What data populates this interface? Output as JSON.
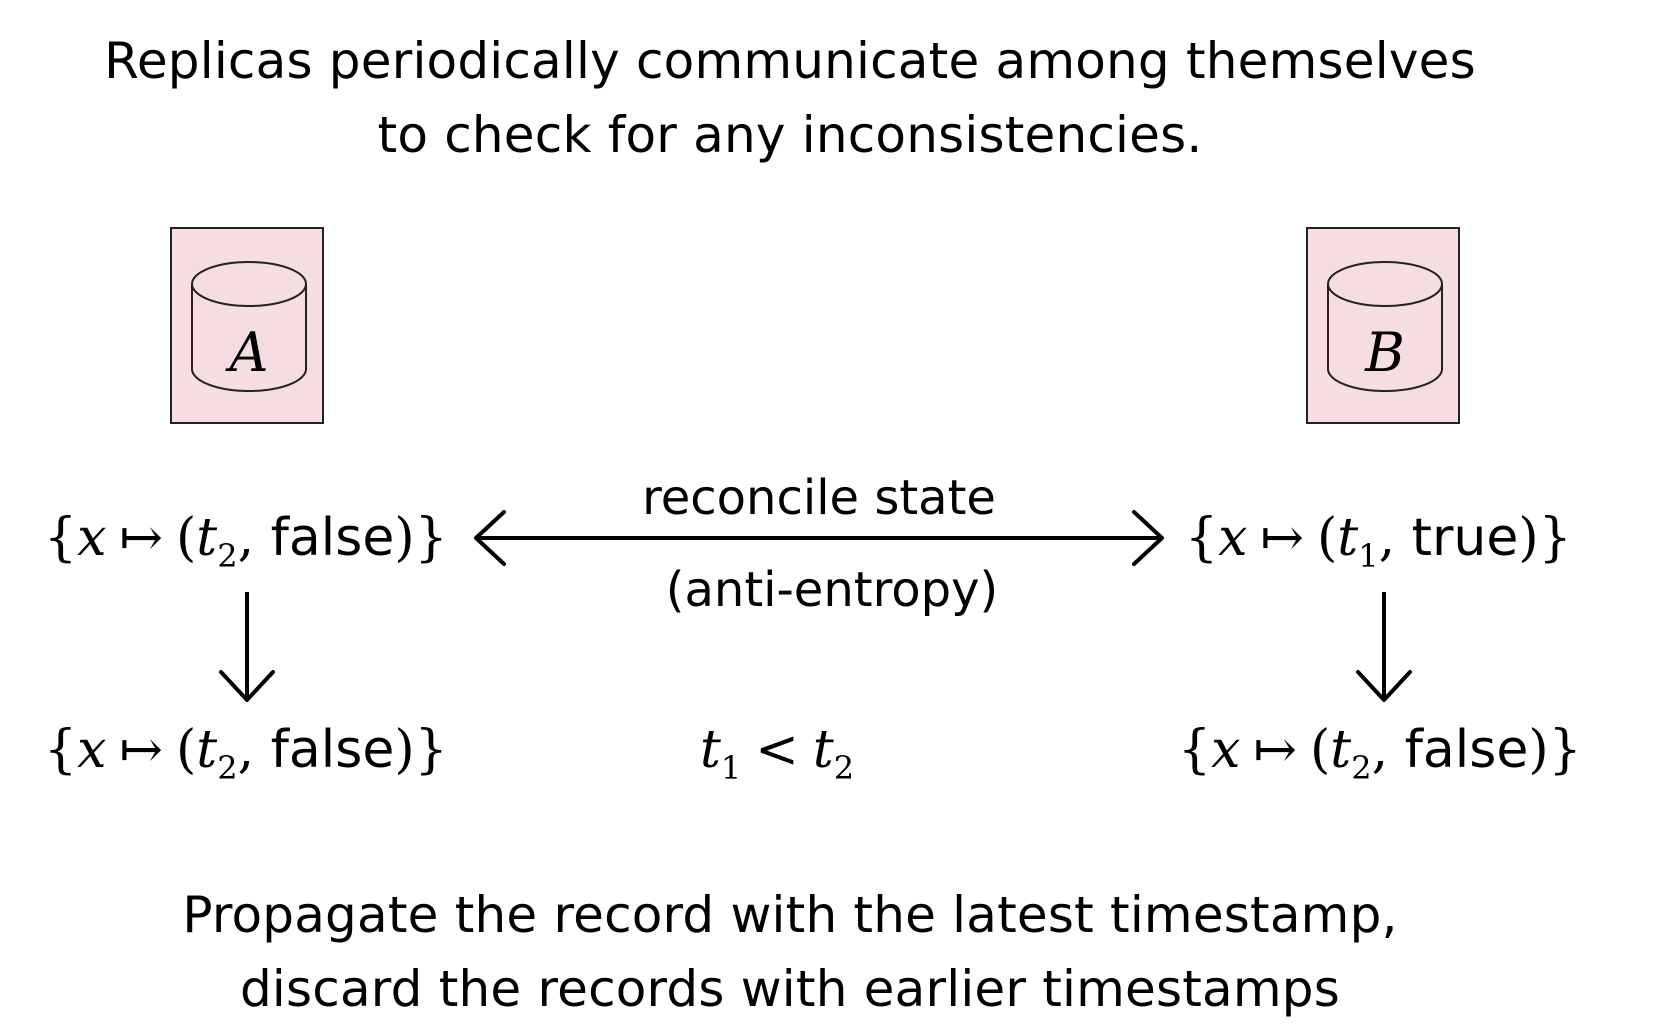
{
  "top_caption": {
    "line1": "Replicas periodically communicate among themselves",
    "line2": "to check for any inconsistencies."
  },
  "replicas": {
    "a": {
      "label": "A"
    },
    "b": {
      "label": "B"
    }
  },
  "edge": {
    "label_above": "reconcile state",
    "label_below": "(anti-entropy)"
  },
  "states": {
    "a_before": {
      "var": "x",
      "maps": "↦",
      "t": "t",
      "t_sub": "2",
      "value": "false"
    },
    "b_before": {
      "var": "x",
      "maps": "↦",
      "t": "t",
      "t_sub": "1",
      "value": "true"
    },
    "a_after": {
      "var": "x",
      "maps": "↦",
      "t": "t",
      "t_sub": "2",
      "value": "false"
    },
    "b_after": {
      "var": "x",
      "maps": "↦",
      "t": "t",
      "t_sub": "2",
      "value": "false"
    }
  },
  "relation": {
    "left": "t",
    "left_sub": "1",
    "op": "<",
    "right": "t",
    "right_sub": "2"
  },
  "bottom_caption": {
    "line1": "Propagate the record with the latest timestamp,",
    "line2": "discard the records with earlier timestamps"
  },
  "colors": {
    "replica_fill": "#f5dde0",
    "stroke": "#000000"
  }
}
